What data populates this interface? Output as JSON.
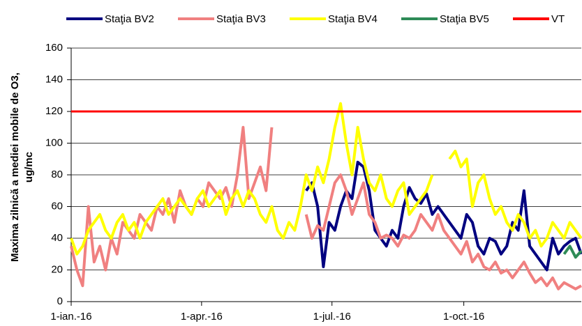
{
  "chart_data": {
    "type": "line",
    "ylabel": [
      "Maxima zilnică a mediei mobile de O3,",
      "ug/mc"
    ],
    "x": [
      0,
      4,
      8,
      12,
      16,
      20,
      24,
      28,
      32,
      36,
      40,
      44,
      48,
      52,
      56,
      60,
      64,
      68,
      72,
      76,
      80,
      84,
      88,
      92,
      96,
      100,
      104,
      108,
      112,
      116,
      120,
      124,
      128,
      132,
      136,
      140,
      144,
      148,
      152,
      156,
      160,
      164,
      168,
      172,
      176,
      180,
      184,
      188,
      192,
      196,
      200,
      204,
      208,
      212,
      216,
      220,
      224,
      228,
      232,
      236,
      240,
      244,
      248,
      252,
      256,
      260,
      264,
      268,
      272,
      276,
      280,
      284,
      288,
      292,
      296,
      300,
      304,
      308,
      312,
      316,
      320,
      324,
      328,
      332,
      336,
      340,
      344,
      348,
      352,
      356
    ],
    "xlim": [
      0,
      356
    ],
    "xticks": [
      {
        "value": 0,
        "label": "1-ian.-16"
      },
      {
        "value": 91,
        "label": "1-apr.-16"
      },
      {
        "value": 182,
        "label": "1-jul.-16"
      },
      {
        "value": 274,
        "label": "1-oct.-16"
      }
    ],
    "ylim": [
      0,
      160
    ],
    "yticks": [
      0,
      20,
      40,
      60,
      80,
      100,
      120,
      140,
      160
    ],
    "grid": true,
    "series": [
      {
        "name": "Staţia BV2",
        "color": "#000080",
        "values": [
          null,
          null,
          null,
          null,
          null,
          null,
          null,
          null,
          null,
          null,
          null,
          null,
          null,
          null,
          null,
          null,
          null,
          null,
          null,
          null,
          null,
          null,
          null,
          null,
          null,
          null,
          null,
          null,
          null,
          null,
          null,
          null,
          null,
          null,
          null,
          null,
          null,
          null,
          null,
          null,
          null,
          70,
          75,
          60,
          22,
          50,
          45,
          60,
          70,
          65,
          88,
          85,
          70,
          45,
          40,
          35,
          45,
          40,
          60,
          72,
          65,
          62,
          68,
          55,
          60,
          55,
          50,
          45,
          40,
          55,
          50,
          35,
          30,
          40,
          38,
          30,
          35,
          50,
          45,
          70,
          35,
          30,
          25,
          20,
          40,
          30,
          35,
          38,
          40,
          30
        ]
      },
      {
        "name": "Staţia BV3",
        "color": "#f08080",
        "values": [
          35,
          20,
          10,
          60,
          25,
          35,
          20,
          40,
          30,
          50,
          45,
          40,
          55,
          50,
          45,
          60,
          55,
          65,
          50,
          70,
          60,
          55,
          65,
          60,
          75,
          70,
          65,
          72,
          60,
          80,
          110,
          65,
          75,
          85,
          70,
          110,
          null,
          null,
          null,
          null,
          null,
          55,
          40,
          48,
          45,
          60,
          75,
          80,
          70,
          55,
          65,
          75,
          55,
          50,
          40,
          42,
          40,
          35,
          42,
          40,
          45,
          55,
          50,
          45,
          55,
          45,
          40,
          35,
          30,
          38,
          25,
          30,
          22,
          20,
          25,
          18,
          20,
          15,
          20,
          25,
          18,
          12,
          15,
          10,
          15,
          8,
          12,
          10,
          8,
          10
        ]
      },
      {
        "name": "Staţia BV4",
        "color": "#ffff00",
        "values": [
          40,
          30,
          35,
          45,
          50,
          55,
          45,
          40,
          50,
          55,
          45,
          50,
          40,
          50,
          55,
          60,
          65,
          55,
          60,
          65,
          60,
          55,
          65,
          70,
          60,
          65,
          70,
          55,
          65,
          70,
          60,
          70,
          65,
          55,
          50,
          60,
          45,
          40,
          50,
          45,
          60,
          80,
          70,
          85,
          75,
          90,
          110,
          125,
          100,
          80,
          110,
          90,
          75,
          70,
          80,
          65,
          60,
          70,
          75,
          55,
          60,
          65,
          70,
          80,
          null,
          null,
          90,
          95,
          85,
          90,
          60,
          75,
          80,
          65,
          55,
          60,
          50,
          45,
          55,
          50,
          40,
          45,
          35,
          40,
          50,
          45,
          40,
          50,
          45,
          40
        ]
      },
      {
        "name": "Staţia BV5",
        "color": "#2e8b57",
        "values": [
          null,
          null,
          null,
          null,
          null,
          null,
          null,
          null,
          null,
          null,
          null,
          null,
          null,
          null,
          null,
          null,
          null,
          null,
          null,
          null,
          null,
          null,
          null,
          null,
          null,
          null,
          null,
          null,
          null,
          null,
          null,
          null,
          null,
          null,
          null,
          null,
          null,
          null,
          null,
          null,
          null,
          null,
          null,
          null,
          null,
          null,
          null,
          null,
          null,
          null,
          null,
          null,
          null,
          null,
          null,
          null,
          null,
          null,
          null,
          null,
          null,
          null,
          null,
          null,
          null,
          null,
          null,
          null,
          null,
          null,
          null,
          null,
          null,
          null,
          null,
          null,
          null,
          null,
          null,
          null,
          null,
          null,
          null,
          null,
          null,
          null,
          30,
          35,
          28,
          32
        ]
      },
      {
        "name": "VT",
        "color": "#ff0000",
        "values": [
          120,
          120,
          120,
          120,
          120,
          120,
          120,
          120,
          120,
          120,
          120,
          120,
          120,
          120,
          120,
          120,
          120,
          120,
          120,
          120,
          120,
          120,
          120,
          120,
          120,
          120,
          120,
          120,
          120,
          120,
          120,
          120,
          120,
          120,
          120,
          120,
          120,
          120,
          120,
          120,
          120,
          120,
          120,
          120,
          120,
          120,
          120,
          120,
          120,
          120,
          120,
          120,
          120,
          120,
          120,
          120,
          120,
          120,
          120,
          120,
          120,
          120,
          120,
          120,
          120,
          120,
          120,
          120,
          120,
          120,
          120,
          120,
          120,
          120,
          120,
          120,
          120,
          120,
          120,
          120,
          120,
          120,
          120,
          120,
          120,
          120,
          120,
          120,
          120,
          120
        ]
      }
    ]
  }
}
